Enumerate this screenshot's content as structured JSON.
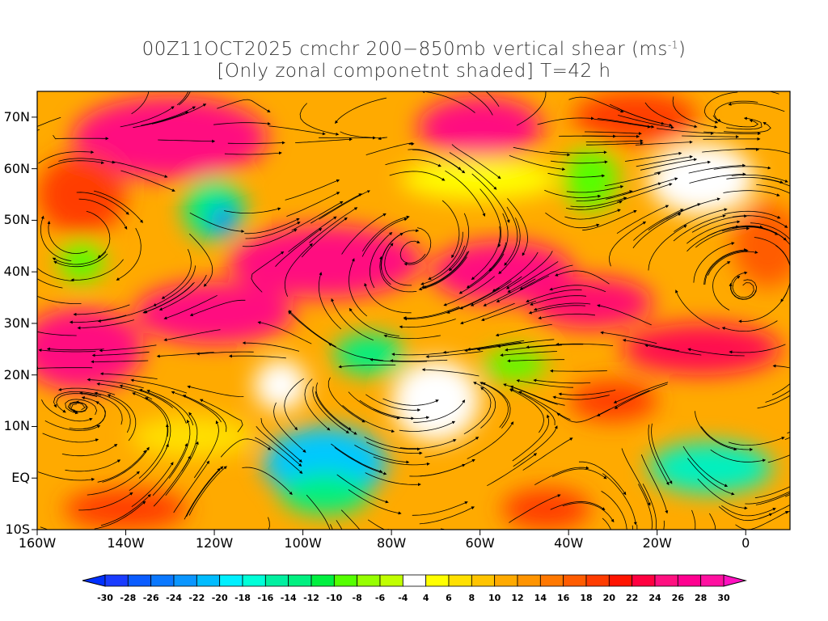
{
  "title": {
    "line1_main": "00Z11OCT2025 cmchr 200−850mb vertical shear (ms",
    "line1_sup": "-1",
    "line1_end": ")",
    "line2": "[Only zonal componetnt shaded] T=42 h"
  },
  "map": {
    "lon_range": [
      -160,
      10
    ],
    "lat_range": [
      -10,
      75
    ],
    "lon_labels": [
      {
        "lon": -160,
        "text": "160W"
      },
      {
        "lon": -140,
        "text": "140W"
      },
      {
        "lon": -120,
        "text": "120W"
      },
      {
        "lon": -100,
        "text": "100W"
      },
      {
        "lon": -80,
        "text": "80W"
      },
      {
        "lon": -60,
        "text": "60W"
      },
      {
        "lon": -40,
        "text": "40W"
      },
      {
        "lon": -20,
        "text": "20W"
      },
      {
        "lon": 0,
        "text": "0"
      }
    ],
    "lat_labels": [
      {
        "lat": 70,
        "text": "70N"
      },
      {
        "lat": 60,
        "text": "60N"
      },
      {
        "lat": 50,
        "text": "50N"
      },
      {
        "lat": 40,
        "text": "40N"
      },
      {
        "lat": 30,
        "text": "30N"
      },
      {
        "lat": 20,
        "text": "20N"
      },
      {
        "lat": 10,
        "text": "10N"
      },
      {
        "lat": 0,
        "text": "EQ"
      },
      {
        "lat": -10,
        "text": "10S"
      }
    ]
  },
  "colorbar": {
    "labels": [
      "-30",
      "-28",
      "-26",
      "-24",
      "-22",
      "-20",
      "-18",
      "-16",
      "-14",
      "-12",
      "-10",
      "-8",
      "-6",
      "-4",
      "4",
      "6",
      "8",
      "10",
      "12",
      "14",
      "16",
      "18",
      "20",
      "22",
      "24",
      "26",
      "28",
      "30"
    ],
    "colors": [
      "#1a3cff",
      "#0a5cff",
      "#0a78ff",
      "#0a96ff",
      "#00bcff",
      "#00f0ff",
      "#00ffd8",
      "#00f0a0",
      "#00f080",
      "#00f040",
      "#55ff00",
      "#96ff00",
      "#c0ff00",
      "#ffffff",
      "#ffff00",
      "#ffe000",
      "#ffc400",
      "#ffaa00",
      "#ff9400",
      "#ff7800",
      "#ff5c00",
      "#ff3c00",
      "#ff1400",
      "#ff0040",
      "#ff1080",
      "#ff0090",
      "#ff10a0"
    ],
    "left_arrow_color": "#0030ff",
    "right_arrow_color": "#ff10c0"
  }
}
